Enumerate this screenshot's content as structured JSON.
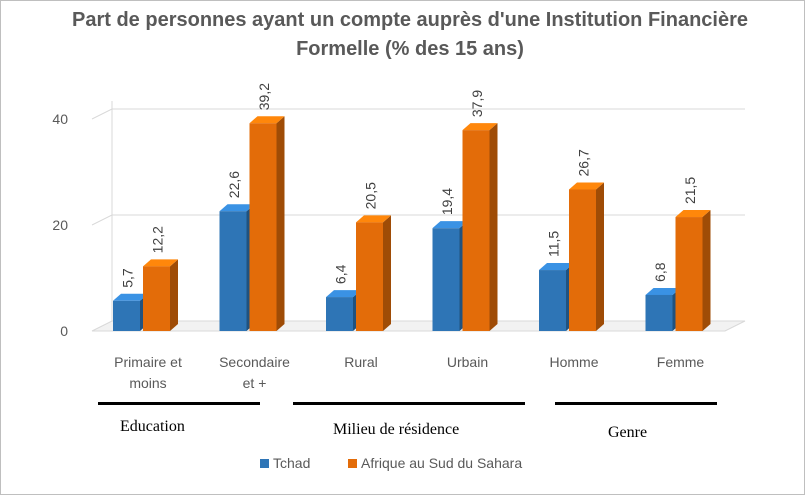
{
  "chart_data": {
    "type": "bar",
    "title": "Part de personnes ayant un compte auprès d'une Institution Financière Formelle (% des 15 ans)",
    "categories": [
      "Primaire et moins",
      "Secondaire et +",
      "Rural",
      "Urbain",
      "Homme",
      "Femme"
    ],
    "category_lines": [
      [
        "Primaire et",
        "moins"
      ],
      [
        "Secondaire",
        "et +"
      ],
      [
        "Rural"
      ],
      [
        "Urbain"
      ],
      [
        "Homme"
      ],
      [
        "Femme"
      ]
    ],
    "series": [
      {
        "name": "Tchad",
        "values": [
          5.7,
          22.6,
          6.4,
          19.4,
          11.5,
          6.8
        ],
        "labels": [
          "5,7",
          "22,6",
          "6,4",
          "19,4",
          "11,5",
          "6,8"
        ],
        "color": "#2e75b6"
      },
      {
        "name": "Afrique au Sud du Sahara",
        "values": [
          12.2,
          39.2,
          20.5,
          37.9,
          26.7,
          21.5
        ],
        "labels": [
          "12,2",
          "39,2",
          "20,5",
          "37,9",
          "26,7",
          "21,5"
        ],
        "color": "#e36c09"
      }
    ],
    "ylim": [
      0,
      40
    ],
    "yticks": [
      0,
      20,
      40
    ],
    "grid": true,
    "legend_position": "bottom",
    "groups": [
      {
        "label": "Education",
        "categories": [
          "Primaire et moins",
          "Secondaire et +"
        ]
      },
      {
        "label": "Milieu  de résidence",
        "categories": [
          "Rural",
          "Urbain"
        ]
      },
      {
        "label": "Genre",
        "categories": [
          "Homme",
          "Femme"
        ]
      }
    ]
  }
}
